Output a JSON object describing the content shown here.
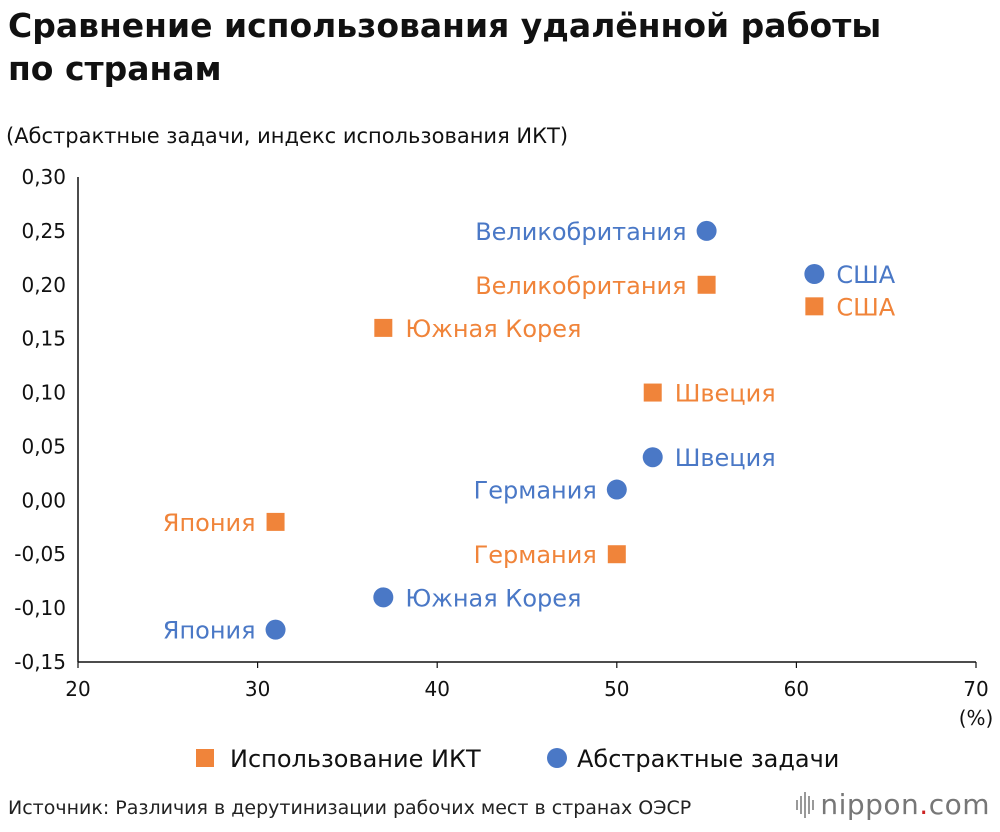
{
  "title": "Сравнение использования удалённой работы по странам",
  "subtitle": "(Абстрактные задачи, индекс использования ИКТ)",
  "source": "Источник: Различия в дерутинизации рабочих мест в странах ОЭСР",
  "logo": {
    "text_main": "nippon",
    "text_dot": ".",
    "text_tail": "com"
  },
  "colors": {
    "ict": "#f0843a",
    "abstract": "#4a78c6",
    "axis": "#111111"
  },
  "chart_data": {
    "type": "scatter",
    "title": "Сравнение использования удалённой работы по странам",
    "ylabel": "(Абстрактные задачи, индекс использования ИКТ)",
    "xlabel": "",
    "x_unit": "(%)",
    "xlim": [
      20,
      70
    ],
    "ylim": [
      -0.15,
      0.3
    ],
    "x_ticks": [
      "20",
      "30",
      "40",
      "50",
      "60",
      "70"
    ],
    "y_ticks": [
      "0,30",
      "0,25",
      "0,20",
      "0,15",
      "0,10",
      "0,05",
      "0,00",
      "-0,05",
      "-0,10",
      "-0,15"
    ],
    "grid": false,
    "legend_position": "bottom",
    "series": [
      {
        "name": "Использование ИКТ",
        "marker": "square",
        "color": "#f0843a",
        "points": [
          {
            "label": "Великобритания",
            "x": 55.0,
            "y": 0.2,
            "label_side": "left"
          },
          {
            "label": "США",
            "x": 61.0,
            "y": 0.18,
            "label_side": "right"
          },
          {
            "label": "Южная Корея",
            "x": 37.0,
            "y": 0.16,
            "label_side": "right"
          },
          {
            "label": "Швеция",
            "x": 52.0,
            "y": 0.1,
            "label_side": "right"
          },
          {
            "label": "Япония",
            "x": 31.0,
            "y": -0.02,
            "label_side": "left"
          },
          {
            "label": "Германия",
            "x": 50.0,
            "y": -0.05,
            "label_side": "left"
          }
        ]
      },
      {
        "name": "Абстрактные задачи",
        "marker": "circle",
        "color": "#4a78c6",
        "points": [
          {
            "label": "Великобритания",
            "x": 55.0,
            "y": 0.25,
            "label_side": "left"
          },
          {
            "label": "США",
            "x": 61.0,
            "y": 0.21,
            "label_side": "right"
          },
          {
            "label": "Швеция",
            "x": 52.0,
            "y": 0.04,
            "label_side": "right"
          },
          {
            "label": "Германия",
            "x": 50.0,
            "y": 0.01,
            "label_side": "left"
          },
          {
            "label": "Южная Корея",
            "x": 37.0,
            "y": -0.09,
            "label_side": "right"
          },
          {
            "label": "Япония",
            "x": 31.0,
            "y": -0.12,
            "label_side": "left"
          }
        ]
      }
    ]
  }
}
